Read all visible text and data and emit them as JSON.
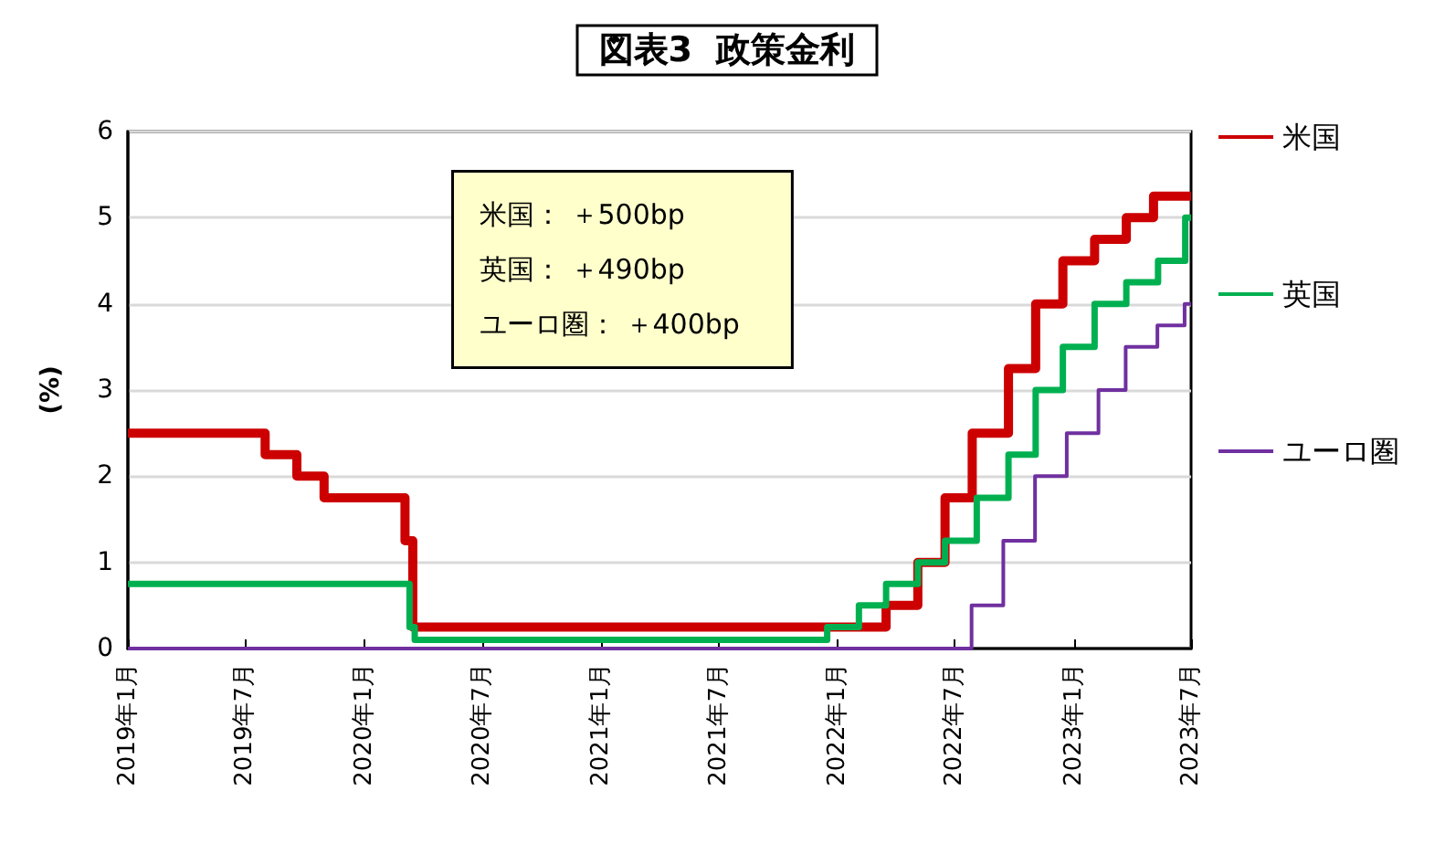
{
  "chart_data": {
    "type": "step",
    "title": "図表3  政策金利",
    "ylabel": "(%)",
    "annotations": [
      "米国： ＋500bp",
      "英国： ＋490bp",
      "ユーロ圏： ＋400bp"
    ],
    "xlim": [
      "2019-01",
      "2023-07"
    ],
    "xticks": [
      {
        "value": "2019-01",
        "label": "2019年1月"
      },
      {
        "value": "2019-07",
        "label": "2019年7月"
      },
      {
        "value": "2020-01",
        "label": "2020年1月"
      },
      {
        "value": "2020-07",
        "label": "2020年7月"
      },
      {
        "value": "2021-01",
        "label": "2021年1月"
      },
      {
        "value": "2021-07",
        "label": "2021年7月"
      },
      {
        "value": "2022-01",
        "label": "2022年1月"
      },
      {
        "value": "2022-07",
        "label": "2022年7月"
      },
      {
        "value": "2023-01",
        "label": "2023年1月"
      },
      {
        "value": "2023-07",
        "label": "2023年7月"
      }
    ],
    "ylim": [
      0,
      6
    ],
    "yticks": [
      0,
      1,
      2,
      3,
      4,
      5,
      6
    ],
    "grid": "y",
    "legend": "right",
    "marker": "none",
    "line_style": "solid",
    "series": [
      {
        "name": "米国",
        "color": "#cc0000",
        "x": [
          "2019-01-01",
          "2019-08-01",
          "2019-09-19",
          "2019-10-31",
          "2020-03-04",
          "2020-03-16",
          "2022-03-17",
          "2022-05-05",
          "2022-06-16",
          "2022-07-28",
          "2022-09-22",
          "2022-11-03",
          "2022-12-15",
          "2023-02-02",
          "2023-03-23",
          "2023-05-04",
          "2023-07-01"
        ],
        "values": [
          2.5,
          2.25,
          2.0,
          1.75,
          1.25,
          0.25,
          0.5,
          1.0,
          1.75,
          2.5,
          3.25,
          4.0,
          4.5,
          4.75,
          5.0,
          5.25,
          5.25
        ]
      },
      {
        "name": "英国",
        "color": "#00b050",
        "x": [
          "2019-01-01",
          "2020-03-11",
          "2020-03-19",
          "2021-12-16",
          "2022-02-03",
          "2022-03-17",
          "2022-05-05",
          "2022-06-16",
          "2022-08-04",
          "2022-09-22",
          "2022-11-03",
          "2022-12-15",
          "2023-02-02",
          "2023-03-23",
          "2023-05-11",
          "2023-06-22",
          "2023-07-01"
        ],
        "values": [
          0.75,
          0.25,
          0.1,
          0.25,
          0.5,
          0.75,
          1.0,
          1.25,
          1.75,
          2.25,
          3.0,
          3.5,
          4.0,
          4.25,
          4.5,
          5.0,
          5.0
        ]
      },
      {
        "name": "ユーロ圏",
        "color": "#7030a0",
        "x": [
          "2019-01-01",
          "2022-07-27",
          "2022-09-14",
          "2022-11-02",
          "2022-12-21",
          "2023-02-08",
          "2023-03-22",
          "2023-05-10",
          "2023-06-21",
          "2023-07-01"
        ],
        "values": [
          0,
          0.5,
          1.25,
          2.0,
          2.5,
          3.0,
          3.5,
          3.75,
          4.0,
          4.0
        ]
      }
    ]
  }
}
